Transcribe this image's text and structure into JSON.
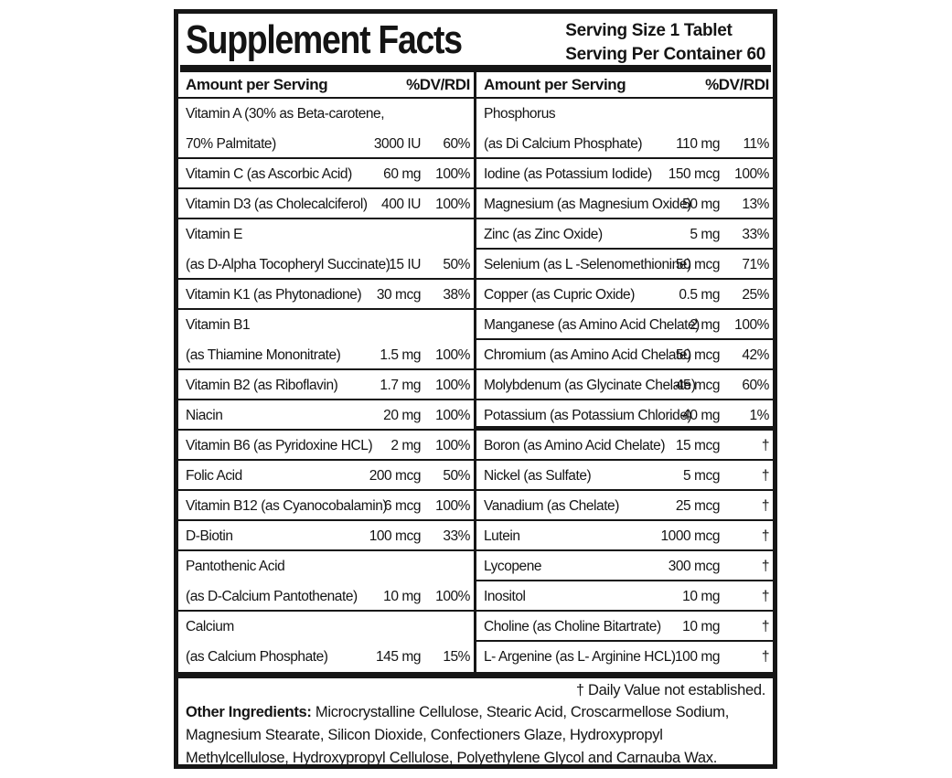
{
  "label": {
    "title": "Supplement Facts",
    "serving_lines": [
      "Serving Size 1 Tablet",
      "Serving Per Container 60"
    ],
    "column_header": {
      "amount": "Amount per Serving",
      "dv": "%DV/RDI"
    },
    "columns": {
      "left": [
        {
          "lines": [
            "Vitamin A (30% as Beta-carotene,",
            "70% Palmitate)"
          ],
          "amount": "3000 IU",
          "dv": "60%"
        },
        {
          "lines": [
            "Vitamin C (as Ascorbic Acid)"
          ],
          "amount": "60 mg",
          "dv": "100%"
        },
        {
          "lines": [
            "Vitamin D3 (as Cholecalciferol)"
          ],
          "amount": "400 IU",
          "dv": "100%"
        },
        {
          "lines": [
            "Vitamin E",
            "(as D-Alpha Tocopheryl Succinate)"
          ],
          "amount": "15 IU",
          "dv": "50%"
        },
        {
          "lines": [
            "Vitamin K1 (as Phytonadione)"
          ],
          "amount": "30 mcg",
          "dv": "38%"
        },
        {
          "lines": [
            "Vitamin B1",
            "(as Thiamine Mononitrate)"
          ],
          "amount": "1.5 mg",
          "dv": "100%"
        },
        {
          "lines": [
            "Vitamin B2 (as Riboflavin)"
          ],
          "amount": "1.7 mg",
          "dv": "100%"
        },
        {
          "lines": [
            "Niacin"
          ],
          "amount": "20 mg",
          "dv": "100%"
        },
        {
          "lines": [
            "Vitamin B6 (as Pyridoxine HCL)"
          ],
          "amount": "2 mg",
          "dv": "100%"
        },
        {
          "lines": [
            "Folic Acid"
          ],
          "amount": "200 mcg",
          "dv": "50%"
        },
        {
          "lines": [
            "Vitamin B12 (as Cyanocobalamin)"
          ],
          "amount": "6 mcg",
          "dv": "100%"
        },
        {
          "lines": [
            "D-Biotin"
          ],
          "amount": "100 mcg",
          "dv": "33%"
        },
        {
          "lines": [
            "Pantothenic Acid",
            "(as D-Calcium Pantothenate)"
          ],
          "amount": "10 mg",
          "dv": "100%"
        },
        {
          "lines": [
            "Calcium",
            "(as Calcium Phosphate)"
          ],
          "amount": "145 mg",
          "dv": "15%"
        }
      ],
      "right": [
        {
          "lines": [
            "Phosphorus",
            "(as Di Calcium Phosphate)"
          ],
          "amount": "110 mg",
          "dv": "11%"
        },
        {
          "lines": [
            "Iodine (as Potassium Iodide)"
          ],
          "amount": "150 mcg",
          "dv": "100%"
        },
        {
          "lines": [
            "Magnesium (as Magnesium Oxide)"
          ],
          "amount": "50 mg",
          "dv": "13%"
        },
        {
          "lines": [
            "Zinc (as Zinc Oxide)"
          ],
          "amount": "5 mg",
          "dv": "33%"
        },
        {
          "lines": [
            "Selenium (as L -Selenomethionine)"
          ],
          "amount": "50 mcg",
          "dv": "71%"
        },
        {
          "lines": [
            "Copper (as Cupric Oxide)"
          ],
          "amount": "0.5 mg",
          "dv": "25%"
        },
        {
          "lines": [
            "Manganese (as Amino Acid Chelate)"
          ],
          "amount": "2 mg",
          "dv": "100%"
        },
        {
          "lines": [
            "Chromium (as Amino Acid Chelate)"
          ],
          "amount": "50 mcg",
          "dv": "42%"
        },
        {
          "lines": [
            "Molybdenum (as Glycinate Chelate)"
          ],
          "amount": "45 mcg",
          "dv": "60%"
        },
        {
          "lines": [
            "Potassium (as Potassium Chloride)"
          ],
          "amount": "40 mg",
          "dv": "1%",
          "thick_after": true
        },
        {
          "lines": [
            "Boron (as Amino Acid Chelate)"
          ],
          "amount": "15 mcg",
          "dv": "†"
        },
        {
          "lines": [
            "Nickel (as Sulfate)"
          ],
          "amount": "5 mcg",
          "dv": "†"
        },
        {
          "lines": [
            "Vanadium (as Chelate)"
          ],
          "amount": "25 mcg",
          "dv": "†"
        },
        {
          "lines": [
            "Lutein"
          ],
          "amount": "1000 mcg",
          "dv": "†"
        },
        {
          "lines": [
            "Lycopene"
          ],
          "amount": "300 mcg",
          "dv": "†"
        },
        {
          "lines": [
            "Inositol"
          ],
          "amount": "10 mg",
          "dv": "†"
        },
        {
          "lines": [
            "Choline (as Choline Bitartrate)"
          ],
          "amount": "10 mg",
          "dv": "†"
        },
        {
          "lines": [
            "L- Argenine (as L- Arginine HCL)"
          ],
          "amount": "100 mg",
          "dv": "†"
        }
      ]
    },
    "footnote": "† Daily Value not established.",
    "other_ingredients_label": "Other Ingredients:",
    "other_ingredients": " Microcrystalline Cellulose, Stearic Acid, Croscarmellose Sodium, Magnesium Stearate, Silicon Dioxide, Confectioners Glaze, Hydroxypropyl Methylcellulose, Hydroxypropyl Cellulose, Polyethylene Glycol and Carnauba Wax.",
    "colors": {
      "ink": "#161616",
      "background": "#ffffff"
    }
  }
}
